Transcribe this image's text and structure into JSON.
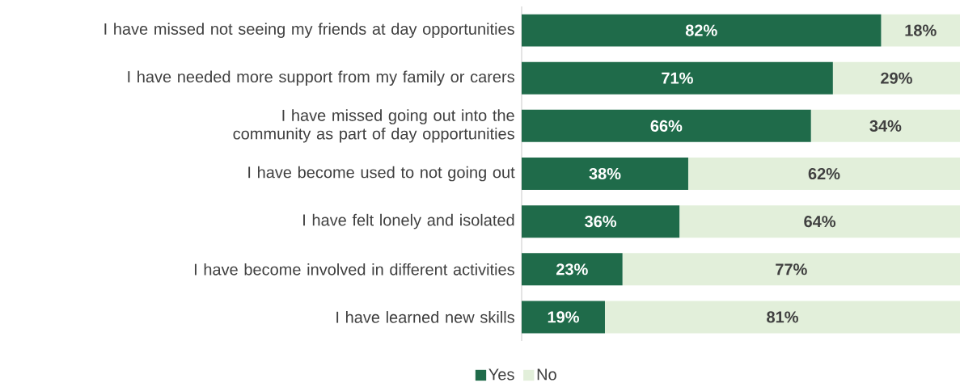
{
  "chart_data": {
    "type": "bar",
    "orientation": "horizontal",
    "stacked": true,
    "legend": "bottom",
    "categories": [
      "I have missed not seeing my friends at day opportunities",
      "I have needed more support from my family or carers",
      "I have missed going out into the community as part of day opportunities",
      "I have become used to not going out",
      "I have felt lonely and isolated",
      "I have become involved in different activities",
      "I have learned new skills"
    ],
    "series": [
      {
        "name": "Yes",
        "color": "#1f6b4a",
        "values": [
          82,
          71,
          66,
          38,
          36,
          23,
          19
        ],
        "value_labels": [
          "82%",
          "71%",
          "66%",
          "38%",
          "36%",
          "23%",
          "19%"
        ]
      },
      {
        "name": "No",
        "color": "#e2efda",
        "values": [
          18,
          29,
          34,
          62,
          64,
          77,
          81
        ],
        "value_labels": [
          "18%",
          "29%",
          "34%",
          "62%",
          "64%",
          "77%",
          "81%"
        ]
      }
    ]
  }
}
